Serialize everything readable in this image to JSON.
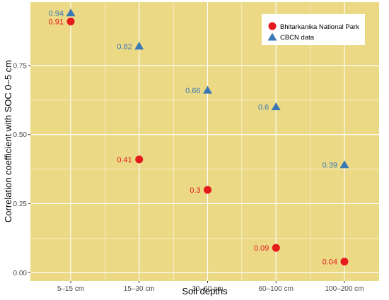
{
  "chart_data": {
    "type": "scatter",
    "title": "",
    "xlabel": "Soil depths",
    "ylabel": "Correlation coefficient with SOC 0–5 cm",
    "categories": [
      "5–15 cm",
      "15–30 cm",
      "30–60 cm",
      "60–100 cm",
      "100–200 cm"
    ],
    "ylim": [
      -0.03,
      0.98
    ],
    "yticks": [
      0.0,
      0.25,
      0.5,
      0.75
    ],
    "ytick_labels": [
      "0.00",
      "0.25",
      "0.50",
      "0.75"
    ],
    "grid": true,
    "legend_position": "top-right",
    "series": [
      {
        "name": "Bhitarkanika National Park",
        "marker": "circle",
        "color": "#e41a1c",
        "values": [
          0.91,
          0.41,
          0.3,
          0.09,
          0.04
        ],
        "labels": [
          "0.91",
          "0.41",
          "0.3",
          "0.09",
          "0.04"
        ]
      },
      {
        "name": "CBCN data",
        "marker": "triangle",
        "color": "#3a78b5",
        "values": [
          0.94,
          0.82,
          0.66,
          0.6,
          0.39
        ],
        "labels": [
          "0.94",
          "0.82",
          "0.66",
          "0.6",
          "0.39"
        ]
      }
    ],
    "colors": {
      "panel_background": "#ecd986",
      "grid": "#ffffff"
    }
  }
}
